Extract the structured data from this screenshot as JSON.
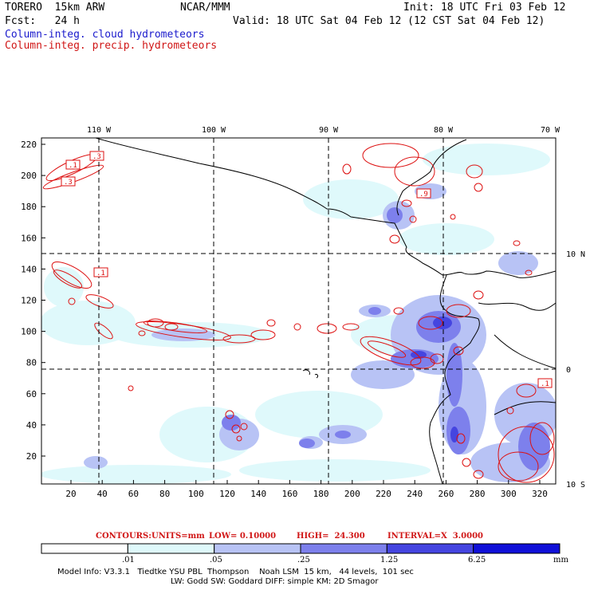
{
  "header": {
    "model": "TORERO  15km ARW",
    "org": "NCAR/MMM",
    "init": "Init: 18 UTC Fri 03 Feb 12",
    "fcst": "Fcst:   24 h",
    "valid": "Valid: 18 UTC Sat 04 Feb 12 (12 CST Sat 04 Feb 12)",
    "field1": "Column-integ. cloud hydrometeors",
    "field2": "Column-integ. precip. hydrometeors"
  },
  "map": {
    "top_lon_labels": [
      "110 W",
      "100 W",
      "90 W",
      "80 W",
      "70 W"
    ],
    "right_lat_labels": [
      "10 N",
      "0",
      "10 S"
    ],
    "y_ticks": [
      "220",
      "200",
      "180",
      "160",
      "140",
      "120",
      "100",
      "80",
      "60",
      "40",
      "20"
    ],
    "x_ticks": [
      "20",
      "40",
      "60",
      "80",
      "100",
      "120",
      "140",
      "160",
      "180",
      "200",
      "220",
      "240",
      "260",
      "280",
      "300",
      "320"
    ],
    "contour_labels": [
      ".1",
      ".3",
      ".3",
      ".1",
      ".9",
      ".1"
    ]
  },
  "legend": {
    "contours_label": "CONTOURS:",
    "units": "UNITS=mm",
    "low": "LOW= 0.10000",
    "high": "HIGH=  24.300",
    "interval": "INTERVAL=X  3.0000",
    "colorbar_labels": [
      ".01",
      ".05",
      ".25",
      "1.25",
      "6.25",
      "mm"
    ],
    "colorbar_colors": [
      "#ffffff",
      "#dff9fb",
      "#b8c3f5",
      "#7d80ec",
      "#4545e0",
      "#1010d8"
    ]
  },
  "footer": {
    "line1": "Model Info: V3.3.1   Tiedtke YSU PBL  Thompson    Noah LSM  15 km,   44 levels,  101 sec",
    "line2": "LW: Godd SW: Goddard DIFF: simple KM: 2D Smagor"
  },
  "colors": {
    "precip_contour": "#dd1111",
    "cloud_text": "#1a1acc"
  }
}
